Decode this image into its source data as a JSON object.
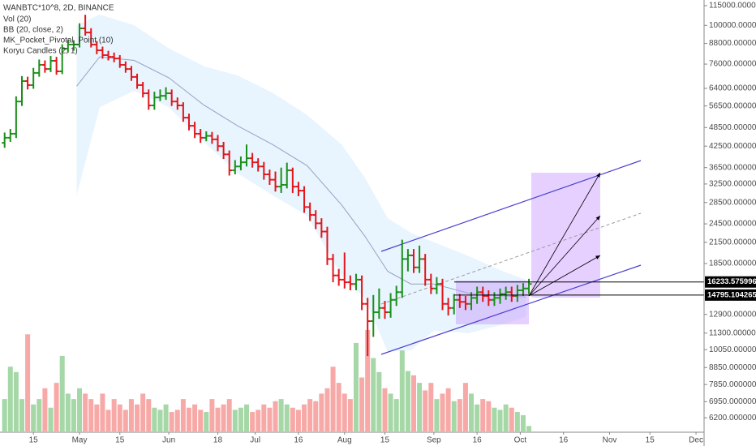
{
  "chart_data": {
    "type": "ohlc",
    "title": "WANBTC*10^8, 2D, BINANCE",
    "indicators": [
      "Vol (20)",
      "BB (20, close, 2)",
      "MK_Pocket_Pivotal_Point (10)",
      "Koryu Candles (2, 1)"
    ],
    "log_scale": true,
    "xlim": [
      93.4,
      337.8
    ],
    "ylim": [
      5630,
      119700
    ],
    "xticks": [
      {
        "value": 105,
        "label": "15"
      },
      {
        "value": 121,
        "label": "May"
      },
      {
        "value": 135,
        "label": "15"
      },
      {
        "value": 152,
        "label": "Jun"
      },
      {
        "value": 169,
        "label": "18"
      },
      {
        "value": 182,
        "label": "Jul"
      },
      {
        "value": 197,
        "label": "16"
      },
      {
        "value": 213,
        "label": "Aug"
      },
      {
        "value": 227,
        "label": "15"
      },
      {
        "value": 244,
        "label": "Sep"
      },
      {
        "value": 259,
        "label": "16"
      },
      {
        "value": 274,
        "label": "Oct"
      },
      {
        "value": 289,
        "label": "16"
      },
      {
        "value": 305,
        "label": "Nov"
      },
      {
        "value": 319,
        "label": "15"
      },
      {
        "value": 335,
        "label": "Dec"
      }
    ],
    "yticks": [
      {
        "value": 115000,
        "label": "115000.0000000"
      },
      {
        "value": 100000,
        "label": "100000.0000000"
      },
      {
        "value": 88000,
        "label": "88000.0000000"
      },
      {
        "value": 76000,
        "label": "76000.0000000"
      },
      {
        "value": 64000,
        "label": "64000.0000000"
      },
      {
        "value": 56500,
        "label": "56500.0000000"
      },
      {
        "value": 48500,
        "label": "48500.0000000"
      },
      {
        "value": 42500,
        "label": "42500.0000000"
      },
      {
        "value": 36500,
        "label": "36500.0000000"
      },
      {
        "value": 32500,
        "label": "32500.0000000"
      },
      {
        "value": 28500,
        "label": "28500.0000000"
      },
      {
        "value": 24500,
        "label": "24500.0000000"
      },
      {
        "value": 21500,
        "label": "21500.0000000"
      },
      {
        "value": 18500,
        "label": "18500.0000000"
      },
      {
        "value": 12900,
        "label": "12900.0000000"
      },
      {
        "value": 11300,
        "label": "11300.0000000"
      },
      {
        "value": 10050,
        "label": "10050.0000000"
      },
      {
        "value": 8850,
        "label": "8850.0000000"
      },
      {
        "value": 7850,
        "label": "7850.0000000"
      },
      {
        "value": 6950,
        "label": "6950.0000000"
      },
      {
        "value": 6200,
        "label": "6200.0000000"
      }
    ],
    "levels": [
      16233.5759969,
      14795.1042653
    ],
    "colors": {
      "up": "#1b8f1b",
      "down": "#e0161b",
      "volume_up": "rgba(76,175,80,0.5)",
      "volume_down": "rgba(239,83,80,0.5)",
      "band": "rgba(33,150,243,0.1)",
      "basis": "rgba(90,110,150,0.6)",
      "level": "#000000"
    },
    "x": [
      95,
      97,
      99,
      101,
      103,
      105,
      107,
      109,
      111,
      113,
      115,
      117,
      119,
      121,
      123,
      125,
      127,
      129,
      131,
      133,
      135,
      137,
      139,
      141,
      143,
      145,
      147,
      149,
      151,
      153,
      155,
      157,
      159,
      161,
      163,
      165,
      167,
      169,
      171,
      173,
      175,
      177,
      179,
      181,
      183,
      185,
      187,
      189,
      191,
      193,
      195,
      197,
      199,
      201,
      203,
      205,
      207,
      209,
      211,
      213,
      215,
      217,
      219,
      221,
      223,
      225,
      227,
      229,
      231,
      233,
      235,
      237,
      239,
      241,
      243,
      245,
      247,
      249,
      251,
      253,
      255,
      257,
      259,
      261,
      263,
      265,
      267,
      269,
      271,
      273,
      275,
      277
    ],
    "ohlc": [
      [
        43500,
        46800,
        42000,
        45100
      ],
      [
        45100,
        48000,
        43800,
        46400
      ],
      [
        46400,
        60500,
        45000,
        58300
      ],
      [
        58300,
        69800,
        56500,
        67400
      ],
      [
        67400,
        69500,
        63500,
        65500
      ],
      [
        65500,
        74000,
        63800,
        71400
      ],
      [
        71400,
        78500,
        69500,
        75600
      ],
      [
        75600,
        78000,
        71500,
        73400
      ],
      [
        73400,
        80500,
        71800,
        77800
      ],
      [
        77800,
        80000,
        70500,
        72200
      ],
      [
        72200,
        87500,
        70800,
        84800
      ],
      [
        84800,
        90500,
        82500,
        87300
      ],
      [
        87300,
        90000,
        83500,
        87300
      ],
      [
        87300,
        101500,
        85500,
        97900
      ],
      [
        97900,
        107800,
        93000,
        95100
      ],
      [
        95100,
        98000,
        85500,
        87300
      ],
      [
        87300,
        89500,
        81500,
        83800
      ],
      [
        83800,
        86000,
        79000,
        81000
      ],
      [
        81000,
        83500,
        78000,
        80000
      ],
      [
        80000,
        82500,
        77000,
        79100
      ],
      [
        79100,
        81000,
        74000,
        75600
      ],
      [
        75600,
        77500,
        71500,
        73400
      ],
      [
        73400,
        75000,
        67500,
        69400
      ],
      [
        69400,
        71000,
        63800,
        65500
      ],
      [
        65500,
        67000,
        60000,
        61800
      ],
      [
        61800,
        63500,
        55000,
        56700
      ],
      [
        56700,
        62500,
        55000,
        60000
      ],
      [
        60000,
        63500,
        58500,
        60700
      ],
      [
        60700,
        64500,
        59000,
        61800
      ],
      [
        61800,
        63500,
        56500,
        58300
      ],
      [
        58300,
        60000,
        55000,
        56700
      ],
      [
        56700,
        58000,
        50500,
        52000
      ],
      [
        52000,
        53500,
        47500,
        49100
      ],
      [
        49100,
        50500,
        45000,
        46400
      ],
      [
        46400,
        48000,
        43500,
        45100
      ],
      [
        45100,
        47200,
        44000,
        45700
      ],
      [
        45700,
        47000,
        43200,
        44600
      ],
      [
        44600,
        46000,
        41000,
        42500
      ],
      [
        42500,
        43800,
        38800,
        40100
      ],
      [
        40100,
        41200,
        34500,
        35800
      ],
      [
        35800,
        38500,
        34800,
        36800
      ],
      [
        36800,
        39500,
        35800,
        37900
      ],
      [
        37900,
        43000,
        36800,
        39000
      ],
      [
        39000,
        40500,
        36500,
        37900
      ],
      [
        37900,
        39000,
        35500,
        36800
      ],
      [
        36800,
        38000,
        33500,
        34800
      ],
      [
        34800,
        36000,
        32300,
        33500
      ],
      [
        33500,
        35500,
        30800,
        31900
      ],
      [
        31900,
        36500,
        30500,
        32300
      ],
      [
        32300,
        37800,
        31500,
        35800
      ],
      [
        35800,
        36500,
        30500,
        31900
      ],
      [
        31900,
        33000,
        29800,
        31000
      ],
      [
        31000,
        32000,
        26500,
        27600
      ],
      [
        27600,
        28500,
        25000,
        26100
      ],
      [
        26100,
        27000,
        23600,
        24600
      ],
      [
        24600,
        25500,
        22200,
        23200
      ],
      [
        23200,
        24000,
        18300,
        19100
      ],
      [
        19100,
        19800,
        16200,
        17000
      ],
      [
        17000,
        17800,
        15800,
        16500
      ],
      [
        16500,
        20000,
        15500,
        16200
      ],
      [
        16200,
        17000,
        15300,
        16000
      ],
      [
        16000,
        17200,
        15300,
        16500
      ],
      [
        16500,
        17000,
        13300,
        13900
      ],
      [
        13900,
        14500,
        9600,
        12300
      ],
      [
        12300,
        14800,
        11000,
        13100
      ],
      [
        13100,
        15500,
        12500,
        13500
      ],
      [
        13500,
        14200,
        12500,
        13100
      ],
      [
        13100,
        15000,
        12600,
        14300
      ],
      [
        14300,
        15800,
        13700,
        15100
      ],
      [
        15100,
        21900,
        14500,
        19100
      ],
      [
        19100,
        20500,
        17500,
        19600
      ],
      [
        19600,
        20500,
        17300,
        18000
      ],
      [
        18000,
        21000,
        17300,
        19100
      ],
      [
        19100,
        19800,
        15800,
        16500
      ],
      [
        16500,
        17200,
        14900,
        15500
      ],
      [
        15500,
        16800,
        14900,
        16000
      ],
      [
        16000,
        16600,
        13300,
        13900
      ],
      [
        13900,
        14500,
        12800,
        13500
      ],
      [
        13500,
        14900,
        12900,
        14300
      ],
      [
        14300,
        14900,
        13500,
        14100
      ],
      [
        14100,
        14700,
        13300,
        13900
      ],
      [
        13900,
        15100,
        13300,
        14500
      ],
      [
        14500,
        15700,
        13900,
        15100
      ],
      [
        15100,
        15700,
        14100,
        14700
      ],
      [
        14700,
        15300,
        13700,
        14300
      ],
      [
        14300,
        15100,
        13700,
        14500
      ],
      [
        14500,
        15500,
        13900,
        14900
      ],
      [
        14900,
        15700,
        14300,
        15100
      ],
      [
        15100,
        15700,
        14100,
        14700
      ],
      [
        14700,
        15900,
        14100,
        15300
      ],
      [
        15300,
        16100,
        14700,
        15500
      ],
      [
        15500,
        16600,
        14900,
        16000
      ]
    ],
    "volume": [
      30,
      60,
      55,
      30,
      90,
      25,
      30,
      40,
      22,
      45,
      70,
      35,
      30,
      40,
      35,
      30,
      25,
      35,
      20,
      30,
      25,
      20,
      30,
      25,
      35,
      30,
      22,
      20,
      25,
      18,
      20,
      30,
      22,
      25,
      20,
      18,
      30,
      22,
      25,
      30,
      20,
      22,
      25,
      18,
      20,
      25,
      22,
      28,
      30,
      25,
      22,
      20,
      25,
      30,
      28,
      35,
      40,
      60,
      45,
      35,
      30,
      82,
      50,
      94,
      68,
      55,
      40,
      35,
      30,
      75,
      56,
      52,
      45,
      38,
      45,
      30,
      35,
      40,
      28,
      30,
      45,
      35,
      25,
      30,
      28,
      22,
      20,
      25,
      22,
      18,
      15,
      5
    ],
    "volume_ylim": [
      0,
      400
    ],
    "bollinger": {
      "x": [
        120,
        128,
        140,
        152,
        164,
        176,
        188,
        200,
        212,
        220,
        228,
        236,
        244,
        256,
        268,
        276
      ],
      "upper": [
        100000,
        108000,
        100000,
        85000,
        75000,
        70000,
        62000,
        53000,
        43000,
        34000,
        25500,
        23000,
        21500,
        19500,
        17500,
        16500
      ],
      "basis": [
        65000,
        80000,
        78000,
        69000,
        57000,
        49000,
        43000,
        37000,
        28000,
        22500,
        17500,
        16000,
        16000,
        15000,
        14700,
        14600
      ],
      "lower": [
        30000,
        56000,
        63000,
        56000,
        44000,
        35000,
        30000,
        26000,
        17000,
        14500,
        9900,
        10000,
        11500,
        11300,
        12000,
        12700
      ]
    }
  }
}
